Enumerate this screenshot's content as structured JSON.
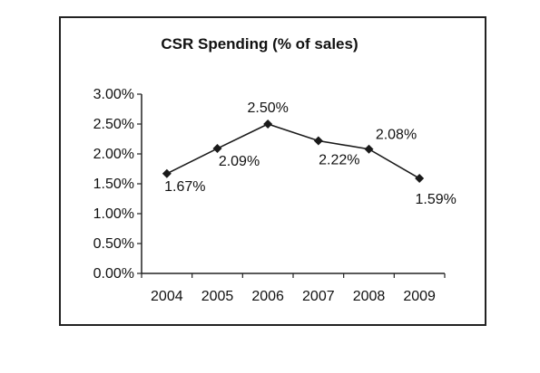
{
  "chart_data": {
    "type": "line",
    "title": "CSR Spending (% of sales)",
    "categories": [
      "2004",
      "2005",
      "2006",
      "2007",
      "2008",
      "2009"
    ],
    "values": [
      1.67,
      2.09,
      2.5,
      2.22,
      2.08,
      1.59
    ],
    "data_labels": [
      "1.67%",
      "2.09%",
      "2.50%",
      "2.22%",
      "2.08%",
      "1.59%"
    ],
    "y_ticks": [
      "0.00%",
      "0.50%",
      "1.00%",
      "1.50%",
      "2.00%",
      "2.50%",
      "3.00%"
    ],
    "ylim": [
      0,
      3
    ],
    "grid": false,
    "legend": "none",
    "marker": "diamond",
    "line_color": "#1a1a1a"
  }
}
